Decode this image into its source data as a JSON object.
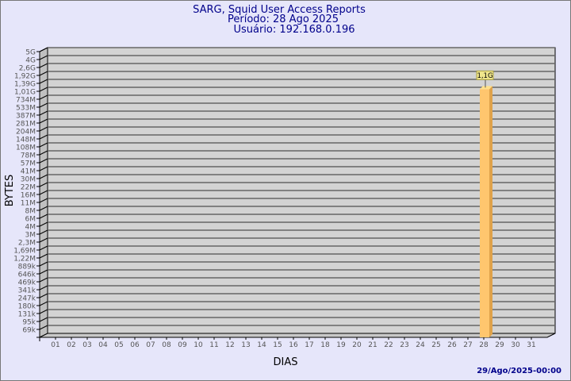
{
  "title": "SARG, Squid User Access Reports",
  "subtitle1": "Período: 28 Ago 2025",
  "subtitle2": "Usuário: 192.168.0.196",
  "footer": "29/Ago/2025-00:00",
  "colors": {
    "background": "#e6e6fa",
    "plot": "#d3d3d3",
    "bar": "#ffc66e",
    "bar_side": "#dfa24a",
    "title": "#00008b"
  },
  "chart_data": {
    "type": "bar",
    "xlabel": "DIAS",
    "ylabel": "BYTES",
    "y_scale": "log",
    "y_ticks": [
      "5G",
      "4G",
      "2,6G",
      "1,92G",
      "1,39G",
      "1,01G",
      "734M",
      "533M",
      "387M",
      "281M",
      "204M",
      "148M",
      "108M",
      "78M",
      "57M",
      "41M",
      "30M",
      "22M",
      "16M",
      "11M",
      "8M",
      "6M",
      "4M",
      "3M",
      "2,3M",
      "1,69M",
      "1,22M",
      "889k",
      "646k",
      "469k",
      "341k",
      "247k",
      "180k",
      "131k",
      "95k",
      "69k"
    ],
    "categories": [
      "01",
      "02",
      "03",
      "04",
      "05",
      "06",
      "07",
      "08",
      "09",
      "10",
      "11",
      "12",
      "13",
      "14",
      "15",
      "16",
      "17",
      "18",
      "19",
      "20",
      "21",
      "22",
      "23",
      "24",
      "25",
      "26",
      "27",
      "28",
      "29",
      "30",
      "31"
    ],
    "bars": [
      {
        "category": "28",
        "value": 1100000000,
        "label": "1,1G"
      }
    ],
    "grid": true
  }
}
